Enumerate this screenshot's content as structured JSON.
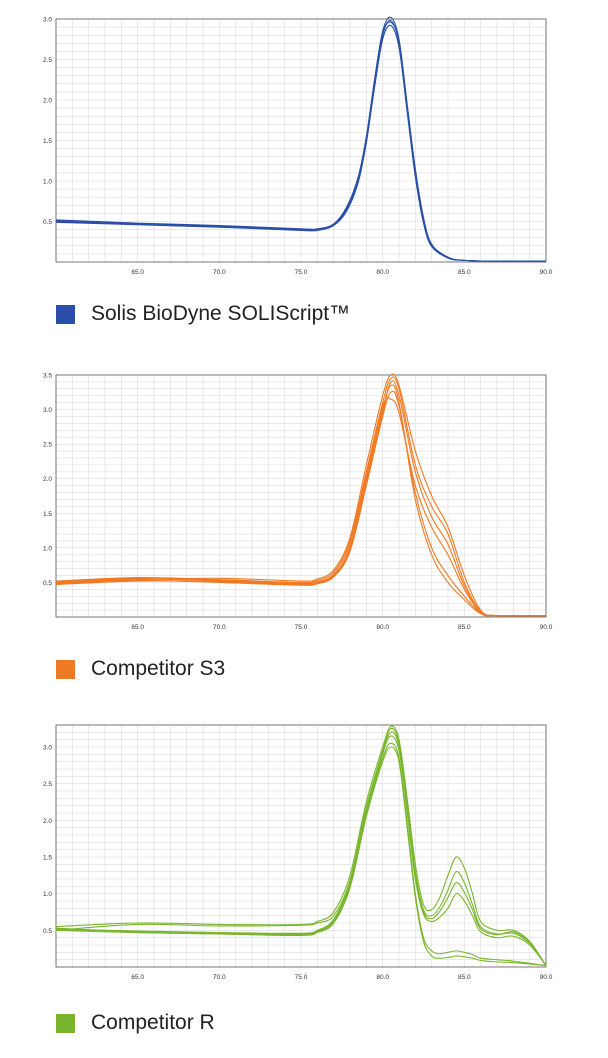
{
  "chart_data": [
    {
      "type": "line",
      "legend_label": "Solis BioDyne SOLIScript™",
      "color": "#2a4fa8",
      "xlim": [
        60,
        90
      ],
      "ylim": [
        0,
        3.0
      ],
      "x_ticks": [
        "65.0",
        "70.0",
        "75.0",
        "80.0",
        "85.0",
        "90.0"
      ],
      "y_ticks": [
        "0.5",
        "1.0",
        "1.5",
        "2.0",
        "2.5",
        "3.0"
      ],
      "grid": true,
      "legend": "bottom-left",
      "series": [
        {
          "x": [
            60,
            65,
            70,
            75,
            76,
            77,
            77.8,
            78.5,
            79,
            79.5,
            80,
            80.5,
            81,
            81.5,
            82,
            82.5,
            83,
            84,
            85,
            87,
            90
          ],
          "y": [
            0.5,
            0.47,
            0.44,
            0.4,
            0.4,
            0.46,
            0.65,
            1.0,
            1.5,
            2.2,
            2.8,
            2.98,
            2.7,
            1.9,
            1.1,
            0.5,
            0.2,
            0.05,
            0.02,
            0.01,
            0.01
          ]
        },
        {
          "x": [
            60,
            65,
            70,
            75,
            76,
            77,
            77.8,
            78.5,
            79,
            79.5,
            80,
            80.5,
            81,
            81.5,
            82,
            82.5,
            83,
            84,
            85,
            87,
            90
          ],
          "y": [
            0.52,
            0.48,
            0.45,
            0.41,
            0.41,
            0.47,
            0.68,
            1.05,
            1.55,
            2.25,
            2.85,
            3.02,
            2.75,
            1.95,
            1.15,
            0.55,
            0.22,
            0.06,
            0.02,
            0.01,
            0.01
          ]
        },
        {
          "x": [
            60,
            65,
            70,
            75,
            76,
            77,
            77.8,
            78.5,
            79,
            79.5,
            80,
            80.5,
            81,
            81.5,
            82,
            82.5,
            83,
            84,
            85,
            87,
            90
          ],
          "y": [
            0.49,
            0.46,
            0.43,
            0.39,
            0.39,
            0.45,
            0.63,
            0.98,
            1.47,
            2.15,
            2.75,
            2.92,
            2.65,
            1.85,
            1.05,
            0.48,
            0.19,
            0.05,
            0.02,
            0.01,
            0.01
          ]
        },
        {
          "x": [
            60,
            65,
            70,
            75,
            76,
            77,
            77.8,
            78.5,
            79,
            79.5,
            80,
            80.5,
            81,
            81.5,
            82,
            82.5,
            83,
            84,
            85,
            87,
            90
          ],
          "y": [
            0.51,
            0.47,
            0.44,
            0.4,
            0.4,
            0.46,
            0.66,
            1.02,
            1.52,
            2.22,
            2.82,
            2.96,
            2.72,
            1.92,
            1.12,
            0.52,
            0.21,
            0.05,
            0.02,
            0.01,
            0.01
          ]
        }
      ]
    },
    {
      "type": "line",
      "legend_label": "Competitor S3",
      "color": "#f07a24",
      "xlim": [
        60,
        90
      ],
      "ylim": [
        0,
        3.5
      ],
      "x_ticks": [
        "65.0",
        "70.0",
        "75.0",
        "80.0",
        "85.0",
        "90.0"
      ],
      "y_ticks": [
        "0.5",
        "1.0",
        "1.5",
        "2.0",
        "2.5",
        "3.0",
        "3.5"
      ],
      "grid": true,
      "legend": "bottom-left",
      "series": [
        {
          "x": [
            60,
            65,
            70,
            75,
            76,
            77,
            78,
            79,
            80,
            80.5,
            81,
            82,
            83,
            84,
            85,
            86,
            87,
            90
          ],
          "y": [
            0.5,
            0.55,
            0.52,
            0.48,
            0.5,
            0.6,
            1.0,
            2.0,
            3.0,
            3.35,
            3.1,
            1.7,
            0.9,
            0.5,
            0.25,
            0.05,
            0.02,
            0.02
          ]
        },
        {
          "x": [
            60,
            65,
            70,
            75,
            76,
            77,
            78,
            79,
            80,
            80.5,
            81,
            82,
            83,
            84,
            85,
            86,
            87,
            90
          ],
          "y": [
            0.48,
            0.53,
            0.5,
            0.46,
            0.48,
            0.58,
            0.95,
            1.9,
            2.9,
            3.25,
            3.05,
            1.8,
            1.0,
            0.6,
            0.3,
            0.06,
            0.02,
            0.02
          ]
        },
        {
          "x": [
            60,
            65,
            70,
            75,
            76,
            77,
            78,
            79,
            80,
            80.5,
            81,
            82,
            83,
            84,
            85,
            86,
            87,
            90
          ],
          "y": [
            0.52,
            0.57,
            0.54,
            0.5,
            0.53,
            0.65,
            1.1,
            2.1,
            3.1,
            3.45,
            3.3,
            2.2,
            1.6,
            1.2,
            0.5,
            0.08,
            0.02,
            0.02
          ]
        },
        {
          "x": [
            60,
            65,
            70,
            75,
            76,
            77,
            78,
            79,
            80,
            80.5,
            81,
            82,
            83,
            84,
            85,
            86,
            87,
            90
          ],
          "y": [
            0.49,
            0.54,
            0.56,
            0.52,
            0.55,
            0.68,
            1.15,
            2.2,
            3.2,
            3.5,
            3.35,
            2.4,
            1.75,
            1.3,
            0.6,
            0.1,
            0.02,
            0.02
          ]
        },
        {
          "x": [
            60,
            65,
            70,
            75,
            76,
            77,
            78,
            79,
            80,
            80.5,
            81,
            82,
            83,
            84,
            85,
            86,
            87,
            90
          ],
          "y": [
            0.51,
            0.56,
            0.53,
            0.49,
            0.51,
            0.62,
            1.05,
            2.05,
            3.05,
            3.15,
            2.95,
            1.9,
            1.3,
            0.9,
            0.4,
            0.07,
            0.02,
            0.02
          ]
        },
        {
          "x": [
            60,
            65,
            70,
            75,
            76,
            77,
            78,
            79,
            80,
            80.5,
            81,
            82,
            83,
            84,
            85,
            86,
            87,
            90
          ],
          "y": [
            0.47,
            0.52,
            0.51,
            0.47,
            0.49,
            0.59,
            0.98,
            1.95,
            2.95,
            3.4,
            3.2,
            2.1,
            1.45,
            1.05,
            0.45,
            0.06,
            0.02,
            0.02
          ]
        }
      ]
    },
    {
      "type": "line",
      "legend_label": "Competitor R",
      "color": "#79b62e",
      "xlim": [
        60,
        90
      ],
      "ylim": [
        0,
        3.3
      ],
      "x_ticks": [
        "65.0",
        "70.0",
        "75.0",
        "80.0",
        "85.0",
        "90.0"
      ],
      "y_ticks": [
        "0.5",
        "1.0",
        "1.5",
        "2.0",
        "2.5",
        "3.0"
      ],
      "grid": true,
      "legend": "bottom-left",
      "series": [
        {
          "x": [
            60,
            65,
            70,
            75,
            76,
            77,
            78,
            79,
            80,
            80.5,
            81,
            81.5,
            82,
            82.5,
            83,
            83.5,
            84,
            84.5,
            85,
            85.5,
            86,
            87,
            88,
            89,
            90
          ],
          "y": [
            0.5,
            0.47,
            0.45,
            0.44,
            0.48,
            0.62,
            1.1,
            2.1,
            2.9,
            3.2,
            3.0,
            2.1,
            1.2,
            0.72,
            0.62,
            0.68,
            0.8,
            1.0,
            0.9,
            0.7,
            0.48,
            0.4,
            0.42,
            0.3,
            0.02
          ]
        },
        {
          "x": [
            60,
            65,
            70,
            75,
            76,
            77,
            78,
            79,
            80,
            80.5,
            81,
            81.5,
            82,
            82.5,
            83,
            83.5,
            84,
            84.5,
            85,
            85.5,
            86,
            87,
            88,
            89,
            90
          ],
          "y": [
            0.52,
            0.49,
            0.47,
            0.46,
            0.5,
            0.65,
            1.15,
            2.15,
            2.95,
            3.25,
            3.05,
            2.2,
            1.3,
            0.78,
            0.7,
            0.82,
            1.05,
            1.3,
            1.15,
            0.85,
            0.55,
            0.45,
            0.46,
            0.32,
            0.02
          ]
        },
        {
          "x": [
            60,
            65,
            70,
            75,
            76,
            77,
            78,
            79,
            80,
            80.5,
            81,
            81.5,
            82,
            82.5,
            83,
            83.5,
            84,
            84.5,
            85,
            85.5,
            86,
            87,
            88,
            89,
            90
          ],
          "y": [
            0.55,
            0.6,
            0.58,
            0.58,
            0.62,
            0.75,
            1.25,
            2.25,
            3.0,
            3.28,
            3.1,
            2.3,
            1.4,
            0.85,
            0.78,
            0.95,
            1.25,
            1.5,
            1.35,
            1.0,
            0.62,
            0.5,
            0.5,
            0.35,
            0.02
          ]
        },
        {
          "x": [
            60,
            65,
            70,
            75,
            76,
            77,
            78,
            79,
            80,
            80.5,
            81,
            81.5,
            82,
            82.5,
            83,
            83.5,
            84,
            84.5,
            85,
            85.5,
            86,
            87,
            88,
            89,
            90
          ],
          "y": [
            0.5,
            0.58,
            0.56,
            0.57,
            0.6,
            0.7,
            1.18,
            2.18,
            2.92,
            3.15,
            2.95,
            2.15,
            1.25,
            0.75,
            0.66,
            0.76,
            0.95,
            1.15,
            1.02,
            0.78,
            0.52,
            0.44,
            0.48,
            0.33,
            0.02
          ]
        },
        {
          "x": [
            60,
            65,
            70,
            75,
            76,
            77,
            78,
            79,
            80,
            80.5,
            81,
            81.5,
            82,
            82.5,
            83,
            83.5,
            84,
            84.5,
            85,
            85.5,
            86,
            87,
            88,
            89,
            90
          ],
          "y": [
            0.53,
            0.48,
            0.46,
            0.45,
            0.49,
            0.63,
            1.12,
            2.08,
            2.85,
            3.05,
            2.85,
            1.95,
            1.0,
            0.4,
            0.22,
            0.18,
            0.2,
            0.22,
            0.2,
            0.17,
            0.12,
            0.1,
            0.08,
            0.05,
            0.02
          ]
        },
        {
          "x": [
            60,
            65,
            70,
            75,
            76,
            77,
            78,
            79,
            80,
            80.5,
            81,
            81.5,
            82,
            82.5,
            83,
            83.5,
            84,
            84.5,
            85,
            85.5,
            86,
            87,
            88,
            89,
            90
          ],
          "y": [
            0.51,
            0.47,
            0.45,
            0.43,
            0.47,
            0.6,
            1.08,
            2.05,
            2.8,
            3.0,
            2.8,
            1.9,
            0.95,
            0.35,
            0.15,
            0.12,
            0.13,
            0.15,
            0.14,
            0.12,
            0.09,
            0.07,
            0.06,
            0.04,
            0.02
          ]
        }
      ]
    }
  ]
}
